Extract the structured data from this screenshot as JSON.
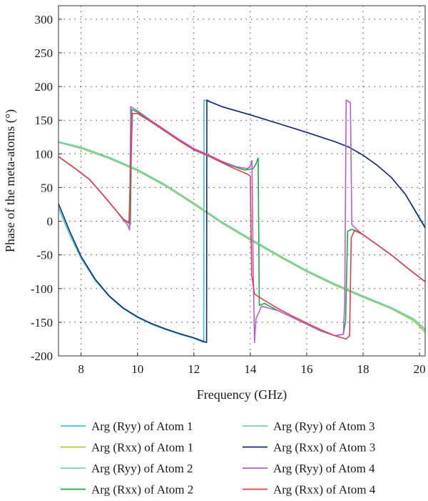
{
  "chart_data": {
    "type": "line",
    "xlabel": "Frequency (GHz)",
    "ylabel": "Phase of the meta-atoms (°)",
    "xlim": [
      7.2,
      20.2
    ],
    "ylim": [
      -200,
      320
    ],
    "xticks": [
      8,
      10,
      12,
      14,
      16,
      18,
      20
    ],
    "yticks": [
      -200,
      -150,
      -100,
      -50,
      0,
      50,
      100,
      150,
      200,
      250,
      300
    ],
    "grid": true,
    "grid_style": "dotted",
    "legend_position": "bottom",
    "series": [
      {
        "name": "Arg (Ryy) of Atom 1",
        "color": "#3fc4d6",
        "points": [
          [
            7.2,
            20
          ],
          [
            7.6,
            -20
          ],
          [
            8.0,
            -55
          ],
          [
            8.5,
            -88
          ],
          [
            9.0,
            -112
          ],
          [
            9.5,
            -130
          ],
          [
            10.0,
            -143
          ],
          [
            10.5,
            -153
          ],
          [
            11.0,
            -161
          ],
          [
            11.5,
            -168
          ],
          [
            12.0,
            -174
          ],
          [
            12.35,
            -180
          ],
          [
            12.36,
            180
          ],
          [
            12.5,
            178
          ],
          [
            13,
            170
          ],
          [
            14,
            158
          ],
          [
            15,
            145
          ],
          [
            16,
            132
          ],
          [
            17,
            118
          ],
          [
            17.5,
            110
          ],
          [
            18,
            98
          ],
          [
            18.5,
            83
          ],
          [
            19,
            65
          ],
          [
            19.5,
            40
          ],
          [
            20.2,
            -8
          ]
        ]
      },
      {
        "name": "Arg (Rxx) of Atom 1",
        "color": "#b0c74a",
        "points": [
          [
            7.2,
            117
          ],
          [
            8,
            108
          ],
          [
            9,
            93
          ],
          [
            10,
            75
          ],
          [
            11,
            52
          ],
          [
            12,
            25
          ],
          [
            13,
            -3
          ],
          [
            14,
            -28
          ],
          [
            15,
            -52
          ],
          [
            16,
            -75
          ],
          [
            17,
            -95
          ],
          [
            18,
            -113
          ],
          [
            19,
            -130
          ],
          [
            19.8,
            -148
          ],
          [
            20.2,
            -165
          ]
        ]
      },
      {
        "name": "Arg (Ryy) of Atom 2",
        "color": "#6fd6b4",
        "points": [
          [
            7.2,
            117
          ],
          [
            8,
            109
          ],
          [
            9,
            94
          ],
          [
            10,
            76
          ],
          [
            11,
            53
          ],
          [
            12,
            26
          ],
          [
            13,
            -2
          ],
          [
            14,
            -27
          ],
          [
            15,
            -51
          ],
          [
            16,
            -74
          ],
          [
            17,
            -94
          ],
          [
            18,
            -112
          ],
          [
            19,
            -129
          ],
          [
            19.8,
            -146
          ],
          [
            20.2,
            -162
          ]
        ]
      },
      {
        "name": "Arg (Rxx) of Atom 2",
        "color": "#1fa84a",
        "points": [
          [
            7.2,
            96
          ],
          [
            7.8,
            78
          ],
          [
            8.3,
            62
          ],
          [
            8.8,
            38
          ],
          [
            9.2,
            18
          ],
          [
            9.5,
            3
          ],
          [
            9.7,
            -3
          ],
          [
            9.75,
            -5
          ],
          [
            9.8,
            166
          ],
          [
            10.0,
            162
          ],
          [
            10.5,
            148
          ],
          [
            11,
            134
          ],
          [
            11.5,
            120
          ],
          [
            12,
            107
          ],
          [
            12.5,
            98
          ],
          [
            13,
            88
          ],
          [
            13.5,
            80
          ],
          [
            13.8,
            76
          ],
          [
            14.1,
            78
          ],
          [
            14.2,
            85
          ],
          [
            14.28,
            94
          ],
          [
            14.32,
            -125
          ],
          [
            14.5,
            -122
          ],
          [
            15,
            -133
          ],
          [
            15.5,
            -143
          ],
          [
            16,
            -153
          ],
          [
            16.5,
            -163
          ],
          [
            17,
            -170
          ],
          [
            17.3,
            -168
          ],
          [
            17.38,
            -148
          ],
          [
            17.45,
            -15
          ],
          [
            17.6,
            -12
          ],
          [
            18,
            -20
          ],
          [
            18.5,
            -35
          ],
          [
            19,
            -50
          ],
          [
            19.5,
            -67
          ],
          [
            20.2,
            -90
          ]
        ]
      },
      {
        "name": "Arg (Ryy) of Atom 3",
        "color": "#7fcfa8",
        "points": [
          [
            7.2,
            118
          ],
          [
            8,
            110
          ],
          [
            9,
            95
          ],
          [
            10,
            77
          ],
          [
            11,
            54
          ],
          [
            12,
            27
          ],
          [
            13,
            -1
          ],
          [
            14,
            -26
          ],
          [
            15,
            -50
          ],
          [
            16,
            -73
          ],
          [
            17,
            -93
          ],
          [
            18,
            -111
          ],
          [
            19,
            -128
          ],
          [
            19.8,
            -145
          ],
          [
            20.2,
            -160
          ]
        ]
      },
      {
        "name": "Arg (Rxx) of Atom 3",
        "color": "#1e2a6e",
        "points": [
          [
            7.2,
            26
          ],
          [
            7.6,
            -15
          ],
          [
            8.0,
            -52
          ],
          [
            8.5,
            -86
          ],
          [
            9.0,
            -111
          ],
          [
            9.5,
            -129
          ],
          [
            10.0,
            -142
          ],
          [
            10.5,
            -152
          ],
          [
            11.0,
            -160
          ],
          [
            11.5,
            -167
          ],
          [
            12.0,
            -173
          ],
          [
            12.45,
            -180
          ],
          [
            12.46,
            180
          ],
          [
            12.6,
            177
          ],
          [
            13,
            170
          ],
          [
            14,
            158
          ],
          [
            15,
            145
          ],
          [
            16,
            132
          ],
          [
            17,
            118
          ],
          [
            17.5,
            110
          ],
          [
            18,
            98
          ],
          [
            18.5,
            83
          ],
          [
            19,
            65
          ],
          [
            19.5,
            40
          ],
          [
            20.2,
            -10
          ]
        ]
      },
      {
        "name": "Arg (Ryy) of Atom 4",
        "color": "#b45fd0",
        "points": [
          [
            7.2,
            96
          ],
          [
            7.8,
            78
          ],
          [
            8.3,
            62
          ],
          [
            8.8,
            38
          ],
          [
            9.2,
            18
          ],
          [
            9.5,
            2
          ],
          [
            9.65,
            -5
          ],
          [
            9.72,
            -13
          ],
          [
            9.76,
            170
          ],
          [
            10.0,
            164
          ],
          [
            10.5,
            149
          ],
          [
            11,
            135
          ],
          [
            11.5,
            121
          ],
          [
            12,
            108
          ],
          [
            12.5,
            99
          ],
          [
            13,
            89
          ],
          [
            13.5,
            81
          ],
          [
            13.9,
            78
          ],
          [
            14.0,
            82
          ],
          [
            14.06,
            90
          ],
          [
            14.1,
            -60
          ],
          [
            14.15,
            -180
          ],
          [
            14.2,
            -145
          ],
          [
            14.4,
            -126
          ],
          [
            15,
            -133
          ],
          [
            15.5,
            -143
          ],
          [
            16,
            -153
          ],
          [
            16.5,
            -163
          ],
          [
            17,
            -170
          ],
          [
            17.3,
            -168
          ],
          [
            17.35,
            -120
          ],
          [
            17.4,
            180
          ],
          [
            17.55,
            176
          ],
          [
            17.6,
            -5
          ],
          [
            17.8,
            -13
          ],
          [
            18,
            -20
          ],
          [
            18.5,
            -35
          ],
          [
            19,
            -50
          ],
          [
            19.5,
            -67
          ],
          [
            20.2,
            -90
          ]
        ]
      },
      {
        "name": "Arg (Rxx) of Atom 4",
        "color": "#e0404e",
        "points": [
          [
            7.2,
            96
          ],
          [
            7.8,
            78
          ],
          [
            8.3,
            62
          ],
          [
            8.8,
            38
          ],
          [
            9.2,
            18
          ],
          [
            9.5,
            3
          ],
          [
            9.7,
            -2
          ],
          [
            9.82,
            160
          ],
          [
            10.0,
            160
          ],
          [
            10.5,
            147
          ],
          [
            11,
            133
          ],
          [
            11.5,
            119
          ],
          [
            12,
            106
          ],
          [
            12.5,
            97
          ],
          [
            13,
            87
          ],
          [
            13.5,
            77
          ],
          [
            13.9,
            70
          ],
          [
            14.0,
            67
          ],
          [
            14.05,
            -80
          ],
          [
            14.15,
            -108
          ],
          [
            14.4,
            -115
          ],
          [
            15,
            -130
          ],
          [
            15.5,
            -141
          ],
          [
            16,
            -151
          ],
          [
            16.5,
            -161
          ],
          [
            17,
            -170
          ],
          [
            17.4,
            -175
          ],
          [
            17.52,
            -170
          ],
          [
            17.58,
            -25
          ],
          [
            17.7,
            -13
          ],
          [
            18,
            -20
          ],
          [
            18.5,
            -35
          ],
          [
            19,
            -50
          ],
          [
            19.5,
            -67
          ],
          [
            20.2,
            -90
          ]
        ]
      }
    ]
  }
}
